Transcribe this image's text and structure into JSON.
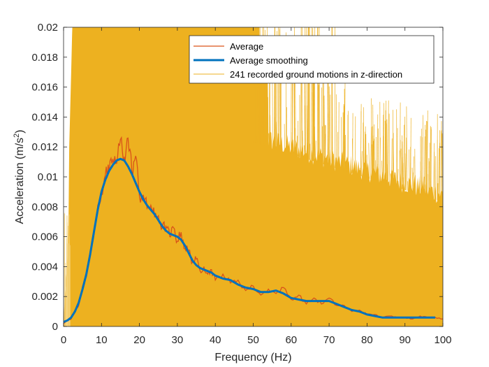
{
  "chart_data": {
    "type": "line",
    "title": "",
    "xlabel": "Frequency (Hz)",
    "ylabel_main": "Acceleration (m/s",
    "ylabel_sup": "2",
    "ylabel_close": ")",
    "xlim": [
      0,
      100
    ],
    "ylim": [
      0,
      0.02
    ],
    "x_ticks": [
      0,
      10,
      20,
      30,
      40,
      50,
      60,
      70,
      80,
      90,
      100
    ],
    "x_tick_labels": [
      "0",
      "10",
      "20",
      "30",
      "40",
      "50",
      "60",
      "70",
      "80",
      "90",
      "100"
    ],
    "y_ticks": [
      0,
      0.002,
      0.004,
      0.006,
      0.008,
      0.01,
      0.012,
      0.014,
      0.016,
      0.018,
      0.02
    ],
    "y_tick_labels": [
      "0",
      "0.002",
      "0.004",
      "0.006",
      "0.008",
      "0.01",
      "0.012",
      "0.014",
      "0.016",
      "0.018",
      "0.02"
    ],
    "grid": false,
    "legend_placement": "top-right",
    "legend": [
      {
        "name": "Average",
        "color": "#D95319",
        "style": "thin-line"
      },
      {
        "name": "Average smoothing",
        "color": "#0072BD",
        "style": "thick-line"
      },
      {
        "name": "241 recorded ground motions in z-direction",
        "color": "#EDB120",
        "style": "thin-line"
      }
    ],
    "series": [
      {
        "name": "Average smoothing",
        "color": "#0072BD",
        "x": [
          0,
          1,
          2,
          3,
          4,
          5,
          6,
          7,
          8,
          9,
          10,
          11,
          12,
          13,
          14,
          15,
          16,
          17,
          18,
          19,
          20,
          21,
          22,
          23,
          24,
          25,
          26,
          27,
          28,
          29,
          30,
          31,
          32,
          33,
          34,
          35,
          36,
          37,
          38,
          39,
          40,
          42,
          44,
          46,
          48,
          50,
          52,
          54,
          56,
          58,
          60,
          62,
          64,
          66,
          68,
          70,
          72,
          74,
          76,
          78,
          80,
          82,
          84,
          86,
          88,
          90,
          92,
          94,
          96,
          98
        ],
        "y": [
          0.0003,
          0.0004,
          0.0006,
          0.001,
          0.0016,
          0.0025,
          0.0035,
          0.0048,
          0.0063,
          0.0078,
          0.009,
          0.0098,
          0.0104,
          0.0108,
          0.0111,
          0.0112,
          0.0111,
          0.0107,
          0.0102,
          0.0096,
          0.009,
          0.0085,
          0.0081,
          0.0078,
          0.0075,
          0.0071,
          0.0067,
          0.0064,
          0.0062,
          0.0061,
          0.006,
          0.0058,
          0.0054,
          0.0049,
          0.0044,
          0.0041,
          0.0039,
          0.0038,
          0.0037,
          0.0036,
          0.0034,
          0.0032,
          0.0031,
          0.0028,
          0.0026,
          0.0025,
          0.0023,
          0.0023,
          0.0024,
          0.0022,
          0.0019,
          0.0018,
          0.0017,
          0.0017,
          0.0017,
          0.0017,
          0.0015,
          0.0013,
          0.0011,
          0.001,
          0.0008,
          0.0007,
          0.0006,
          0.0006,
          0.0006,
          0.0006,
          0.0006,
          0.0006,
          0.0006,
          0.0006
        ]
      },
      {
        "name": "Average",
        "color": "#D95319",
        "x": [
          0,
          1,
          2,
          3,
          4,
          5,
          6,
          7,
          8,
          9,
          10,
          11,
          12,
          13,
          14,
          15,
          16,
          17,
          18,
          19,
          20,
          21,
          22,
          23,
          24,
          25,
          26,
          27,
          28,
          29,
          30,
          31,
          32,
          33,
          34,
          35,
          36,
          37,
          38,
          39,
          40,
          42,
          44,
          46,
          48,
          50,
          52,
          54,
          56,
          58,
          60,
          62,
          64,
          66,
          68,
          70,
          72,
          74,
          76,
          78,
          80,
          82,
          84,
          86,
          88,
          90,
          92,
          94,
          96,
          98,
          100
        ],
        "y": [
          0.0002,
          0.0004,
          0.0005,
          0.0011,
          0.0014,
          0.0027,
          0.0033,
          0.005,
          0.0061,
          0.0081,
          0.0088,
          0.0101,
          0.0103,
          0.0112,
          0.0109,
          0.0125,
          0.0113,
          0.0126,
          0.0104,
          0.0114,
          0.0087,
          0.0088,
          0.0079,
          0.0081,
          0.0073,
          0.0074,
          0.0066,
          0.0067,
          0.006,
          0.0066,
          0.0057,
          0.0063,
          0.0052,
          0.0051,
          0.0043,
          0.0045,
          0.0037,
          0.004,
          0.0035,
          0.0038,
          0.0031,
          0.0035,
          0.0029,
          0.0031,
          0.0024,
          0.0027,
          0.0021,
          0.0025,
          0.0022,
          0.0026,
          0.0018,
          0.0021,
          0.0015,
          0.0019,
          0.0015,
          0.0019,
          0.0014,
          0.0014,
          0.001,
          0.0011,
          0.0008,
          0.0008,
          0.0006,
          0.0007,
          0.0006,
          0.0006,
          0.0005,
          0.0007,
          0.0006,
          0.0006,
          0.0005
        ]
      },
      {
        "name": "241 recorded ground motions in z-direction",
        "color": "#EDB120",
        "count": 241
      }
    ]
  }
}
